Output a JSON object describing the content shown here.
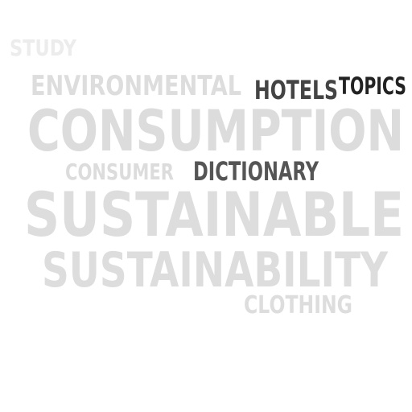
{
  "words": [
    {
      "text": "STUDY",
      "color": "#ececec"
    },
    {
      "text": "ENVIRONMENTAL",
      "color": "#dddddd"
    },
    {
      "text": "HOTELS",
      "color": "#444444"
    },
    {
      "text": "TOPICS",
      "color": "#222222"
    },
    {
      "text": "CONSUMPTION",
      "color": "#dcdcdc"
    },
    {
      "text": "CONSUMER",
      "color": "#dcdcdc"
    },
    {
      "text": "DICTIONARY",
      "color": "#555555"
    },
    {
      "text": "SUSTAINABLE",
      "color": "#dddddd"
    },
    {
      "text": "SUSTAINABILITY",
      "color": "#dddddd"
    },
    {
      "text": "CLOTHING",
      "color": "#dddddd"
    }
  ]
}
